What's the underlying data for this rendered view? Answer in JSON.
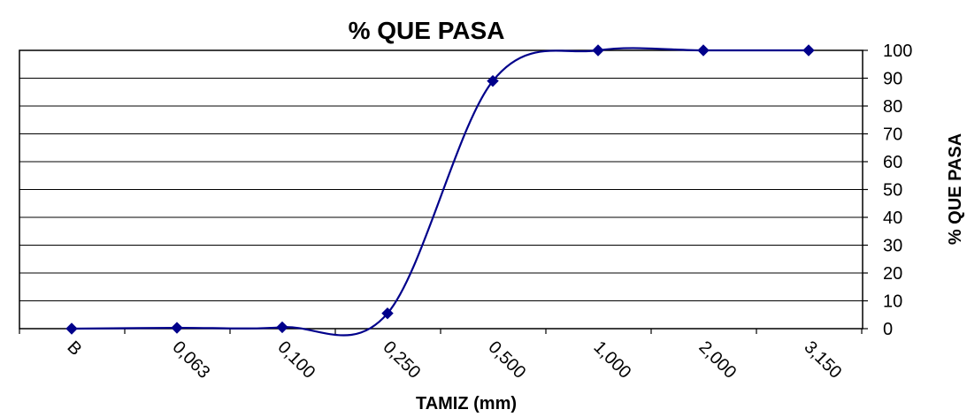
{
  "chart_data": {
    "type": "line",
    "title": "% QUE PASA",
    "xlabel": "TAMIZ (mm)",
    "ylabel": "% QUE PASA",
    "categories": [
      "B",
      "0,063",
      "0,100",
      "0,250",
      "0,500",
      "1,000",
      "2,000",
      "3,150"
    ],
    "series": [
      {
        "values": [
          0,
          0.3,
          0.5,
          5.5,
          89,
          100,
          100,
          100
        ]
      }
    ],
    "y_ticks": [
      "0",
      "10",
      "20",
      "30",
      "40",
      "50",
      "60",
      "70",
      "80",
      "90",
      "100"
    ],
    "ylim": [
      0,
      100
    ],
    "y_axis_side": "right",
    "grid": true,
    "line_color": "#00008B",
    "marker": "diamond",
    "smoothed": true
  }
}
